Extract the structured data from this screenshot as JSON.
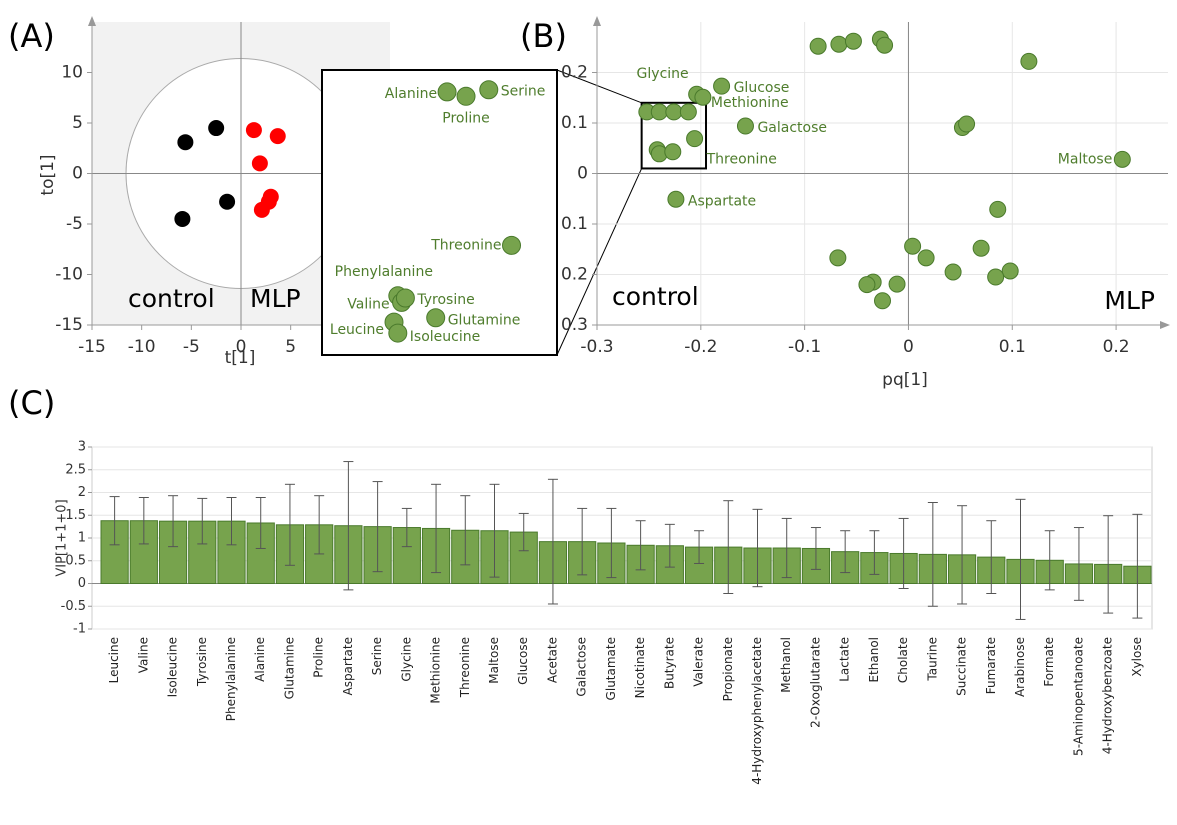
{
  "chart_data": [
    {
      "type": "scatter",
      "panel_label": "(A)",
      "x_label": "t[1]",
      "y_label": "to[1]",
      "annotations": [
        "control",
        "MLP"
      ],
      "xlim": [
        -15,
        15
      ],
      "ylim": [
        -15,
        15
      ],
      "xticks": [
        -15,
        -10,
        -5,
        0,
        5
      ],
      "yticks": [
        -15,
        -10,
        -5,
        0,
        5,
        10
      ],
      "series": [
        {
          "color": "#000000",
          "x": [
            -5.6,
            -2.5,
            -5.9,
            -1.4
          ],
          "y": [
            3.1,
            4.5,
            -4.5,
            -2.8
          ]
        },
        {
          "color": "#ff0000",
          "x": [
            1.3,
            3.7,
            1.9,
            3.0,
            2.8,
            2.1
          ],
          "y": [
            4.3,
            3.7,
            1.0,
            -2.3,
            -2.8,
            -3.6
          ]
        }
      ]
    },
    {
      "type": "scatter",
      "xlim": [
        -0.257,
        -0.195
      ],
      "ylim": [
        0.01,
        0.14
      ],
      "series": [
        {
          "color": "#77a34d",
          "x": [
            -0.224,
            -0.219,
            -0.213,
            -0.207,
            -0.237,
            -0.236,
            -0.235,
            -0.227,
            -0.238,
            -0.237
          ],
          "y": [
            0.13,
            0.128,
            0.131,
            0.06,
            0.037,
            0.034,
            0.036,
            0.027,
            0.025,
            0.02
          ],
          "labels": [
            "Alanine",
            "Proline",
            "Serine",
            "Threonine",
            "Phenylalanine",
            "Valine",
            "Tyrosine",
            "Glutamine",
            "Leucine",
            "Isoleucine"
          ]
        }
      ]
    },
    {
      "type": "scatter",
      "panel_label": "(B)",
      "x_label": "pq[1]",
      "annotations": [
        "control",
        "MLP"
      ],
      "grid": true,
      "xlim": [
        -0.3,
        0.25
      ],
      "ylim": [
        -0.3,
        0.3
      ],
      "xticks": [
        -0.3,
        -0.2,
        -0.1,
        0,
        0.1,
        0.2
      ],
      "yticks": [
        {
          "value": -0.3,
          "label": "0.3"
        },
        {
          "value": -0.2,
          "label": "0.2"
        },
        {
          "value": -0.1,
          "label": "0.1"
        },
        0,
        0.1,
        0.2
      ],
      "series": [
        {
          "color": "#77a34d",
          "x": [
            -0.087,
            -0.067,
            -0.053,
            -0.027,
            -0.023,
            0.116,
            -0.204,
            -0.198,
            -0.18,
            -0.252,
            -0.24,
            -0.226,
            -0.212,
            -0.157,
            0.052,
            0.056,
            -0.206,
            -0.242,
            -0.24,
            -0.227,
            0.206,
            -0.224,
            0.086,
            -0.068,
            0.004,
            0.017,
            0.07,
            0.043,
            0.098,
            0.084,
            -0.034,
            -0.04,
            -0.011,
            -0.025
          ],
          "y": [
            0.252,
            0.256,
            0.262,
            0.266,
            0.254,
            0.222,
            0.157,
            0.151,
            0.173,
            0.122,
            0.122,
            0.122,
            0.122,
            0.094,
            0.091,
            0.098,
            0.069,
            0.047,
            0.039,
            0.043,
            0.028,
            -0.051,
            -0.071,
            -0.167,
            -0.144,
            -0.167,
            -0.148,
            -0.195,
            -0.193,
            -0.205,
            -0.215,
            -0.22,
            -0.219,
            -0.252
          ],
          "labels": [
            null,
            null,
            null,
            null,
            null,
            null,
            "Glycine",
            "Methionine",
            "Glucose",
            null,
            null,
            null,
            null,
            "Galactose",
            null,
            null,
            "Threonine",
            null,
            null,
            null,
            "Maltose",
            "Aspartate",
            null,
            null,
            null,
            null,
            null,
            null,
            null,
            null,
            null,
            null,
            null,
            null
          ]
        }
      ]
    },
    {
      "type": "bar",
      "panel_label": "(C)",
      "y_label": "VIP[1+1+0]",
      "color": "#77a34d",
      "grid": true,
      "ylim": [
        -1,
        3
      ],
      "yticks": [
        -1,
        -0.5,
        0,
        0.5,
        1,
        1.5,
        2,
        2.5,
        3
      ],
      "categories": [
        "Leucine",
        "Valine",
        "Isoleucine",
        "Tyrosine",
        "Phenylalanine",
        "Alanine",
        "Glutamine",
        "Proline",
        "Aspartate",
        "Serine",
        "Glycine",
        "Methionine",
        "Threonine",
        "Maltose",
        "Glucose",
        "Acetate",
        "Galactose",
        "Glutamate",
        "Nicotinate",
        "Butyrate",
        "Valerate",
        "Propionate",
        "4-Hydroxyphenylacetate",
        "Methanol",
        "2-Oxoglutarate",
        "Lactate",
        "Ethanol",
        "Cholate",
        "Taurine",
        "Succinate",
        "Fumarate",
        "Arabinose",
        "Formate",
        "5-Aminopentanoate",
        "4-Hydroxybenzoate",
        "Xylose"
      ],
      "values": [
        1.38,
        1.38,
        1.37,
        1.37,
        1.37,
        1.33,
        1.29,
        1.29,
        1.27,
        1.25,
        1.23,
        1.21,
        1.17,
        1.16,
        1.13,
        0.92,
        0.92,
        0.89,
        0.84,
        0.83,
        0.8,
        0.8,
        0.78,
        0.78,
        0.77,
        0.7,
        0.68,
        0.66,
        0.64,
        0.63,
        0.58,
        0.53,
        0.51,
        0.43,
        0.42,
        0.38
      ],
      "errors": [
        0.53,
        0.51,
        0.56,
        0.5,
        0.52,
        0.56,
        0.89,
        0.64,
        1.41,
        0.99,
        0.42,
        0.97,
        0.76,
        1.02,
        0.41,
        1.37,
        0.73,
        0.76,
        0.54,
        0.47,
        0.36,
        1.02,
        0.85,
        0.65,
        0.46,
        0.46,
        0.48,
        0.77,
        1.14,
        1.08,
        0.8,
        1.32,
        0.65,
        0.8,
        1.07,
        1.14
      ]
    }
  ]
}
